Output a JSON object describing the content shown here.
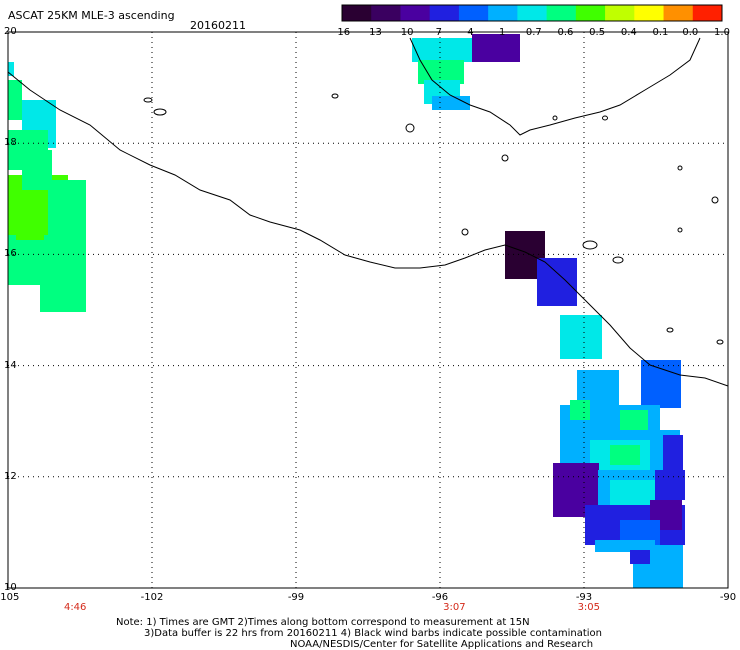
{
  "header": {
    "title": "ASCAT 25KM MLE-3 ascending",
    "date": "20160211"
  },
  "colorbar": {
    "labels": [
      "-16",
      "-13",
      "-10",
      "-7",
      "-4",
      "-1",
      "-0.7",
      "-0.6",
      "-0.5",
      "-0.4",
      "-0.1",
      "0.0",
      "1.0"
    ],
    "colors": [
      "#2a0032",
      "#3a0060",
      "#4a00a0",
      "#2020e0",
      "#0060ff",
      "#00b0ff",
      "#00e8e8",
      "#00ff80",
      "#40ff00",
      "#c0ff00",
      "#ffff00",
      "#ff9000",
      "#ff2000"
    ]
  },
  "map": {
    "lat_labels": [
      {
        "text": "20",
        "lat": 20
      },
      {
        "text": "18",
        "lat": 18
      },
      {
        "text": "16",
        "lat": 16
      },
      {
        "text": "14",
        "lat": 14
      },
      {
        "text": "12",
        "lat": 12
      },
      {
        "text": "10",
        "lat": 10
      }
    ],
    "lon_labels": [
      {
        "text": "-105",
        "lon": -105
      },
      {
        "text": "-102",
        "lon": -102
      },
      {
        "text": "-99",
        "lon": -99
      },
      {
        "text": "-96",
        "lon": -96
      },
      {
        "text": "-93",
        "lon": -93
      },
      {
        "text": "-90",
        "lon": -90
      }
    ],
    "time_labels": [
      {
        "text": "4:46",
        "lon": -103.6
      },
      {
        "text": "3:07",
        "lon": -95.7
      },
      {
        "text": "3:05",
        "lon": -92.9
      }
    ]
  },
  "footer": {
    "note_line1": "Note: 1) Times are GMT 2)Times along bottom correspond to measurement at 15N",
    "note_line2": "3)Data buffer is 22 hrs from 20160211 4) Black wind barbs indicate possible contamination",
    "credit": "NOAA/NESDIS/Center for Satellite Applications and Research"
  }
}
